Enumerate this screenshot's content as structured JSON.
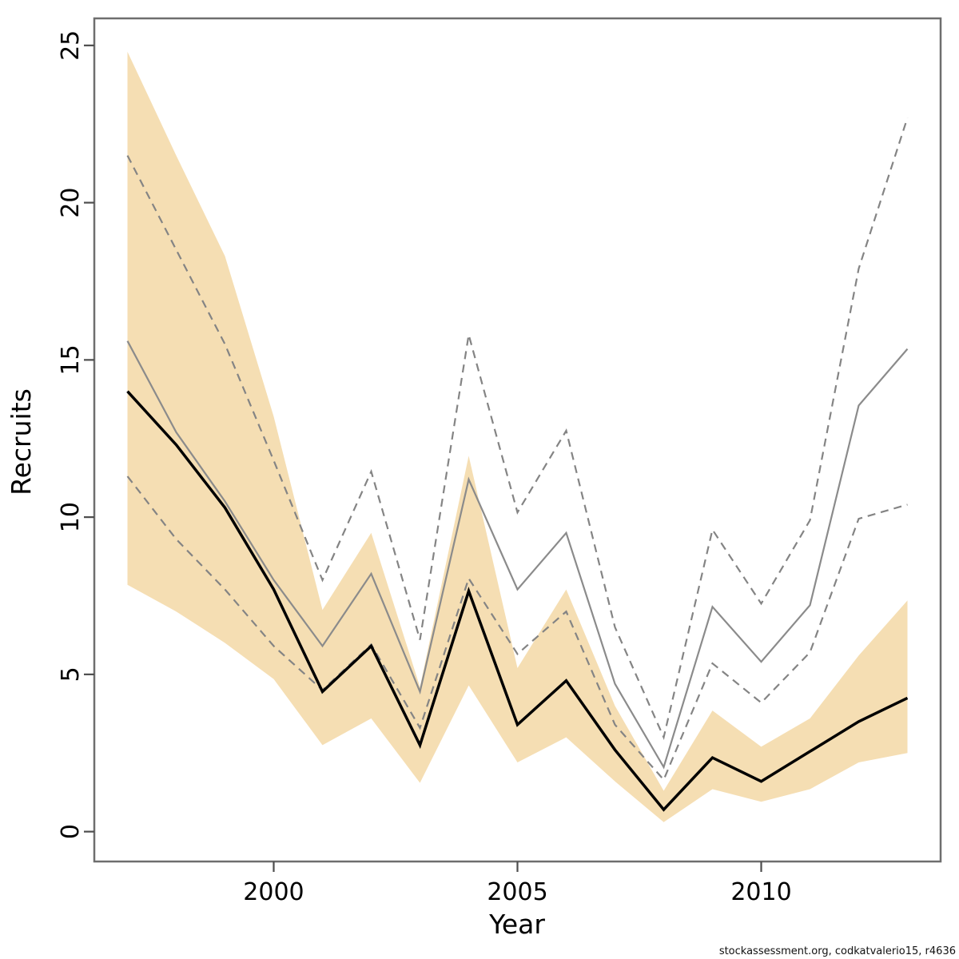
{
  "chart_data": {
    "type": "line",
    "title": "",
    "xlabel": "Year",
    "ylabel": "Recruits",
    "xlim": [
      1996.32,
      2013.68
    ],
    "ylim": [
      -0.95,
      25.86
    ],
    "grid": false,
    "legend_position": "none",
    "xticks": [
      "2000",
      "2005",
      "2010"
    ],
    "xtick_values": [
      2000,
      2005,
      2010
    ],
    "yticks": [
      "0",
      "5",
      "10",
      "15",
      "20",
      "25"
    ],
    "ytick_values": [
      0,
      5,
      10,
      15,
      20,
      25
    ],
    "years": [
      1997,
      1998,
      1999,
      2000,
      2001,
      2002,
      2003,
      2004,
      2005,
      2006,
      2007,
      2008,
      2009,
      2010,
      2011,
      2012,
      2013
    ],
    "band": {
      "name": "recruitment-confidence-band",
      "color": "#f5deb3",
      "low": [
        7.85,
        7.0,
        6.0,
        4.85,
        2.75,
        3.6,
        1.55,
        4.65,
        2.2,
        3.0,
        1.6,
        0.3,
        1.35,
        0.95,
        1.35,
        2.2,
        2.5
      ],
      "high": [
        24.8,
        21.5,
        18.3,
        13.2,
        7.05,
        9.5,
        4.6,
        11.95,
        5.2,
        7.7,
        4.0,
        1.3,
        3.85,
        2.7,
        3.6,
        5.6,
        7.35
      ]
    },
    "series": [
      {
        "name": "recruits-median",
        "style": "solid",
        "color": "#000000",
        "width": 3.5,
        "values": [
          14.0,
          12.3,
          10.3,
          7.7,
          4.45,
          5.9,
          2.75,
          7.65,
          3.4,
          4.8,
          2.6,
          0.7,
          2.35,
          1.6,
          2.55,
          3.5,
          4.25
        ]
      },
      {
        "name": "alternative-estimate",
        "style": "solid",
        "color": "#8b8b8b",
        "width": 2.2,
        "values": [
          15.6,
          12.7,
          10.5,
          8.0,
          5.9,
          8.2,
          4.45,
          11.2,
          7.7,
          9.5,
          4.7,
          2.05,
          7.15,
          5.4,
          7.2,
          13.55,
          15.35
        ]
      },
      {
        "name": "alternative-upper-ci",
        "style": "dashed",
        "color": "#848484",
        "width": 2.2,
        "values": [
          21.5,
          18.5,
          15.5,
          11.8,
          8.0,
          11.45,
          6.1,
          15.8,
          10.15,
          12.75,
          6.5,
          3.0,
          9.6,
          7.25,
          9.9,
          17.9,
          22.7
        ]
      },
      {
        "name": "alternative-lower-ci",
        "style": "dashed",
        "color": "#848484",
        "width": 2.2,
        "values": [
          11.3,
          9.3,
          7.7,
          5.9,
          4.5,
          5.95,
          3.3,
          8.05,
          5.65,
          7.0,
          3.4,
          1.65,
          5.35,
          4.1,
          5.7,
          9.95,
          10.4
        ]
      }
    ]
  },
  "labels": {
    "ylabel": "Recruits",
    "xlabel": "Year"
  },
  "footer": {
    "credit": "stockassessment.org, codkatvalerio15, r4636"
  }
}
